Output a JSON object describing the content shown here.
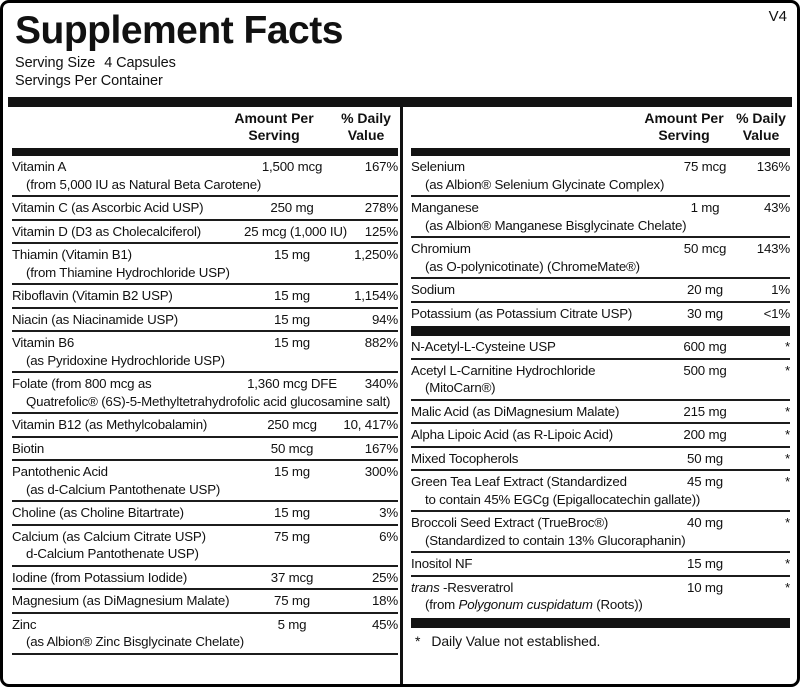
{
  "meta": {
    "version": "V4"
  },
  "colors": {
    "ink": "#111111",
    "bar": "#131313",
    "background": "#ffffff"
  },
  "header": {
    "title": "Supplement Facts",
    "serving_size_label": "Serving Size",
    "serving_size_value": "4 Capsules",
    "servings_per_container": "Servings Per Container"
  },
  "table": {
    "amount_header": "Amount Per\nServing",
    "dv_header": "% Daily\nValue"
  },
  "left_column": {
    "rows": [
      {
        "name": "Vitamin A",
        "amount": "1,500 mcg",
        "dv": "167%",
        "sub": "(from 5,000 IU as Natural Beta Carotene)"
      },
      {
        "name": "Vitamin C (as Ascorbic Acid USP)",
        "amount": "250 mg",
        "dv": "278%"
      },
      {
        "name": "Vitamin D (D3 as Cholecalciferol)",
        "amount": "25 mcg (1,000 IU)",
        "dv": "125%"
      },
      {
        "name": "Thiamin (Vitamin B1)",
        "amount": "15 mg",
        "dv": "1,250%",
        "sub": "(from Thiamine Hydrochloride USP)"
      },
      {
        "name": "Riboflavin (Vitamin B2 USP)",
        "amount": "15 mg",
        "dv": "1,154%"
      },
      {
        "name": "Niacin (as Niacinamide USP)",
        "amount": "15 mg",
        "dv": "94%"
      },
      {
        "name": "Vitamin B6",
        "amount": "15 mg",
        "dv": "882%",
        "sub": "(as Pyridoxine Hydrochloride USP)"
      },
      {
        "name": "Folate (from 800 mcg as",
        "amount": "1,360 mcg DFE",
        "dv": "340%",
        "sub": "Quatrefolic® (6S)-5-Methyltetrahydrofolic acid glucosamine salt)"
      },
      {
        "name": "Vitamin B12 (as Methylcobalamin)",
        "amount": "250 mcg",
        "dv": "10, 417%"
      },
      {
        "name": "Biotin",
        "amount": "50 mcg",
        "dv": "167%"
      },
      {
        "name": "Pantothenic Acid",
        "amount": "15 mg",
        "dv": "300%",
        "sub": "(as d-Calcium Pantothenate USP)"
      },
      {
        "name": "Choline (as Choline Bitartrate)",
        "amount": "15 mg",
        "dv": "3%"
      },
      {
        "name": "Calcium (as Calcium Citrate USP)",
        "amount": "75 mg",
        "dv": "6%",
        "sub": "d-Calcium Pantothenate USP)"
      },
      {
        "name": "Iodine (from Potassium Iodide)",
        "amount": "37 mcg",
        "dv": "25%"
      },
      {
        "name": "Magnesium (as DiMagnesium Malate)",
        "amount": "75 mg",
        "dv": "18%"
      },
      {
        "name": "Zinc",
        "amount": "5 mg",
        "dv": "45%",
        "sub": "(as Albion® Zinc Bisglycinate Chelate)"
      }
    ]
  },
  "right_column": {
    "sections": [
      {
        "rows": [
          {
            "name": "Selenium",
            "amount": "75 mcg",
            "dv": "136%",
            "sub": "(as Albion® Selenium Glycinate Complex)"
          },
          {
            "name": "Manganese",
            "amount": "1 mg",
            "dv": "43%",
            "sub": "(as Albion® Manganese Bisglycinate Chelate)"
          },
          {
            "name": "Chromium",
            "amount": "50 mcg",
            "dv": "143%",
            "sub": "(as O-polynicotinate) (ChromeMate®)"
          },
          {
            "name": "Sodium",
            "amount": "20 mg",
            "dv": "1%"
          },
          {
            "name": "Potassium (as Potassium Citrate USP)",
            "amount": "30 mg",
            "dv": "<1%"
          }
        ]
      },
      {
        "rows": [
          {
            "name": "N-Acetyl-L-Cysteine USP",
            "amount": "600 mg",
            "dv": "*"
          },
          {
            "name": "Acetyl L-Carnitine Hydrochloride",
            "amount": "500 mg",
            "dv": "*",
            "sub": "(MitoCarn®)"
          },
          {
            "name": "Malic Acid (as DiMagnesium Malate)",
            "amount": "215 mg",
            "dv": "*"
          },
          {
            "name": "Alpha Lipoic Acid (as R-Lipoic Acid)",
            "amount": "200 mg",
            "dv": "*"
          },
          {
            "name": "Mixed Tocopherols",
            "amount": "50 mg",
            "dv": "*"
          },
          {
            "name": "Green Tea Leaf Extract (Standardized",
            "amount": "45 mg",
            "dv": "*",
            "sub": "to contain 45% EGCg (Epigallocatechin gallate))"
          },
          {
            "name": "Broccoli Seed Extract (TrueBroc®)",
            "amount": "40 mg",
            "dv": "*",
            "sub": "(Standardized to contain 13% Glucoraphanin)"
          },
          {
            "name": "Inositol NF",
            "amount": "15 mg",
            "dv": "*"
          },
          {
            "name_parts": [
              {
                "t": "trans",
                "i": true
              },
              {
                "t": " -Resveratrol"
              }
            ],
            "amount": "10 mg",
            "dv": "*",
            "sub_parts": [
              {
                "t": "(from "
              },
              {
                "t": "Polygonum cuspidatum",
                "i": true
              },
              {
                "t": " (Roots))"
              }
            ]
          }
        ]
      }
    ],
    "footnote_star": "*",
    "footnote_text": "Daily Value not established."
  }
}
